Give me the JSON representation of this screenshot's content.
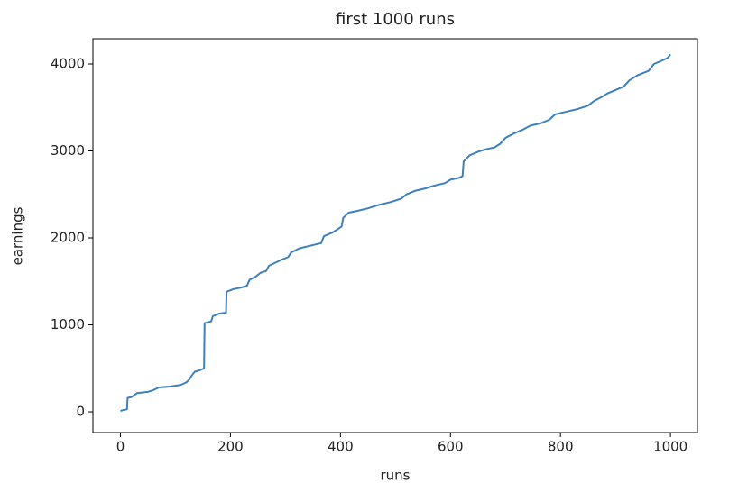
{
  "chart_data": {
    "type": "line",
    "title": "first 1000 runs",
    "x_label": "runs",
    "y_label": "earnings",
    "color": "#3d7fbf",
    "x": [
      0,
      5,
      12,
      13,
      20,
      25,
      30,
      50,
      60,
      70,
      90,
      110,
      120,
      125,
      130,
      135,
      145,
      152,
      153,
      165,
      168,
      180,
      192,
      193,
      205,
      220,
      230,
      235,
      245,
      255,
      265,
      270,
      290,
      305,
      310,
      325,
      345,
      365,
      370,
      385,
      395,
      402,
      405,
      415,
      430,
      450,
      470,
      490,
      510,
      520,
      535,
      555,
      570,
      590,
      600,
      615,
      622,
      624,
      635,
      650,
      665,
      680,
      690,
      700,
      715,
      730,
      745,
      765,
      780,
      790,
      810,
      830,
      850,
      860,
      875,
      885,
      900,
      915,
      925,
      940,
      960,
      970,
      985,
      995,
      1000
    ],
    "values": [
      10,
      20,
      30,
      160,
      170,
      190,
      215,
      230,
      250,
      280,
      290,
      310,
      340,
      370,
      420,
      460,
      480,
      500,
      1020,
      1040,
      1100,
      1130,
      1140,
      1380,
      1410,
      1430,
      1450,
      1520,
      1550,
      1600,
      1620,
      1680,
      1740,
      1780,
      1830,
      1880,
      1910,
      1940,
      2020,
      2060,
      2100,
      2130,
      2230,
      2290,
      2310,
      2340,
      2380,
      2410,
      2450,
      2500,
      2540,
      2570,
      2600,
      2630,
      2670,
      2690,
      2710,
      2880,
      2950,
      2990,
      3020,
      3040,
      3080,
      3150,
      3200,
      3240,
      3290,
      3320,
      3360,
      3420,
      3450,
      3480,
      3520,
      3570,
      3620,
      3660,
      3700,
      3740,
      3810,
      3870,
      3920,
      4000,
      4040,
      4070,
      4110
    ],
    "xlim": [
      -50,
      1049
    ],
    "ylim": [
      -238,
      4290
    ],
    "xticks": [
      0,
      200,
      400,
      600,
      800,
      1000
    ],
    "yticks": [
      0,
      1000,
      2000,
      3000,
      4000
    ]
  }
}
